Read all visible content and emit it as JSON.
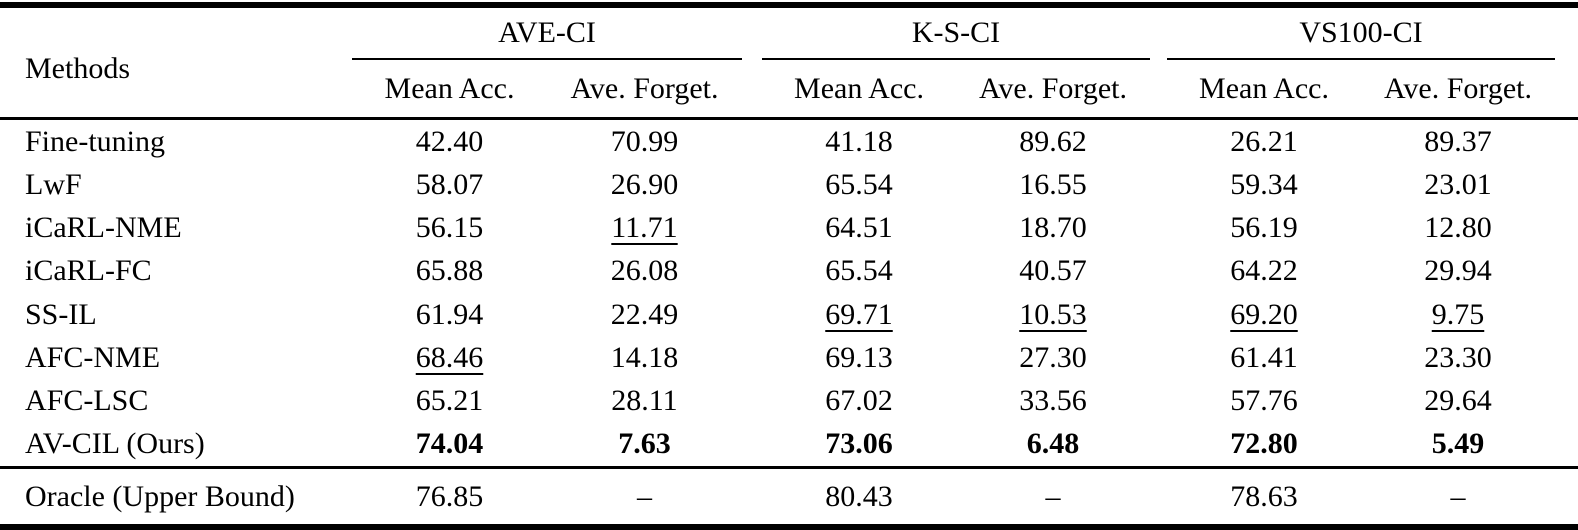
{
  "table": {
    "methods_header": "Methods",
    "groups": [
      {
        "label": "AVE-CI"
      },
      {
        "label": "K-S-CI"
      },
      {
        "label": "VS100-CI"
      }
    ],
    "subheaders": {
      "mean": "Mean Acc.",
      "forget": "Ave. Forget."
    },
    "rows": [
      {
        "method": "Fine-tuning",
        "values": [
          "42.40",
          "70.99",
          "41.18",
          "89.62",
          "26.21",
          "89.37"
        ]
      },
      {
        "method": "LwF",
        "values": [
          "58.07",
          "26.90",
          "65.54",
          "16.55",
          "59.34",
          "23.01"
        ]
      },
      {
        "method": "iCaRL-NME",
        "values": [
          "56.15",
          "11.71",
          "64.51",
          "18.70",
          "56.19",
          "12.80"
        ]
      },
      {
        "method": "iCaRL-FC",
        "values": [
          "65.88",
          "26.08",
          "65.54",
          "40.57",
          "64.22",
          "29.94"
        ]
      },
      {
        "method": "SS-IL",
        "values": [
          "61.94",
          "22.49",
          "69.71",
          "10.53",
          "69.20",
          "9.75"
        ]
      },
      {
        "method": "AFC-NME",
        "values": [
          "68.46",
          "14.18",
          "69.13",
          "27.30",
          "61.41",
          "23.30"
        ]
      },
      {
        "method": "AFC-LSC",
        "values": [
          "65.21",
          "28.11",
          "67.02",
          "33.56",
          "57.76",
          "29.64"
        ]
      },
      {
        "method": "AV-CIL (Ours)",
        "values": [
          "74.04",
          "7.63",
          "73.06",
          "6.48",
          "72.80",
          "5.49"
        ]
      }
    ],
    "oracle_row": {
      "method": "Oracle (Upper Bound)",
      "values": [
        "76.85",
        "–",
        "80.43",
        "–",
        "78.63",
        "–"
      ]
    },
    "text_color": "#000000",
    "background_color": "#ffffff"
  }
}
